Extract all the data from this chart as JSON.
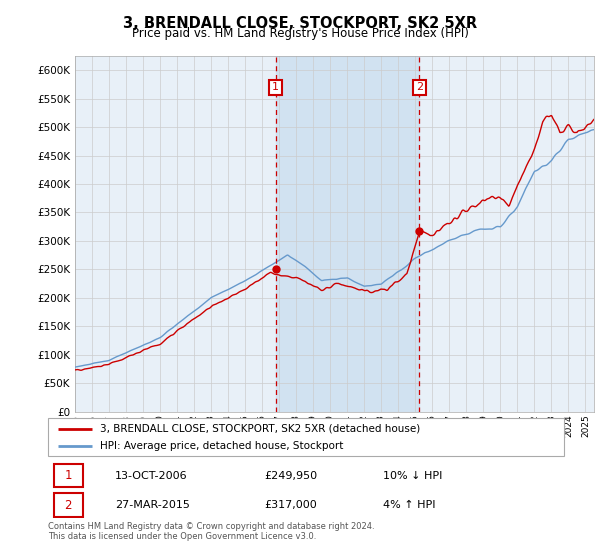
{
  "title": "3, BRENDALL CLOSE, STOCKPORT, SK2 5XR",
  "subtitle": "Price paid vs. HM Land Registry's House Price Index (HPI)",
  "legend_line1": "3, BRENDALL CLOSE, STOCKPORT, SK2 5XR (detached house)",
  "legend_line2": "HPI: Average price, detached house, Stockport",
  "annotation1_label": "1",
  "annotation1_date": "13-OCT-2006",
  "annotation1_price": "£249,950",
  "annotation1_hpi": "10% ↓ HPI",
  "annotation2_label": "2",
  "annotation2_date": "27-MAR-2015",
  "annotation2_price": "£317,000",
  "annotation2_hpi": "4% ↑ HPI",
  "footer": "Contains HM Land Registry data © Crown copyright and database right 2024.\nThis data is licensed under the Open Government Licence v3.0.",
  "ylim": [
    0,
    625000
  ],
  "yticks": [
    0,
    50000,
    100000,
    150000,
    200000,
    250000,
    300000,
    350000,
    400000,
    450000,
    500000,
    550000,
    600000
  ],
  "hpi_color": "#6699cc",
  "price_color": "#cc0000",
  "marker1_x_year": 2006.79,
  "marker2_x_year": 2015.24,
  "shade1_start": 2006.79,
  "shade1_end": 2015.24,
  "background_color": "#ffffff",
  "chart_bg": "#e8f0f8",
  "grid_color": "#cccccc",
  "box_color": "#cc0000",
  "xmin": 1995,
  "xmax": 2025.5
}
